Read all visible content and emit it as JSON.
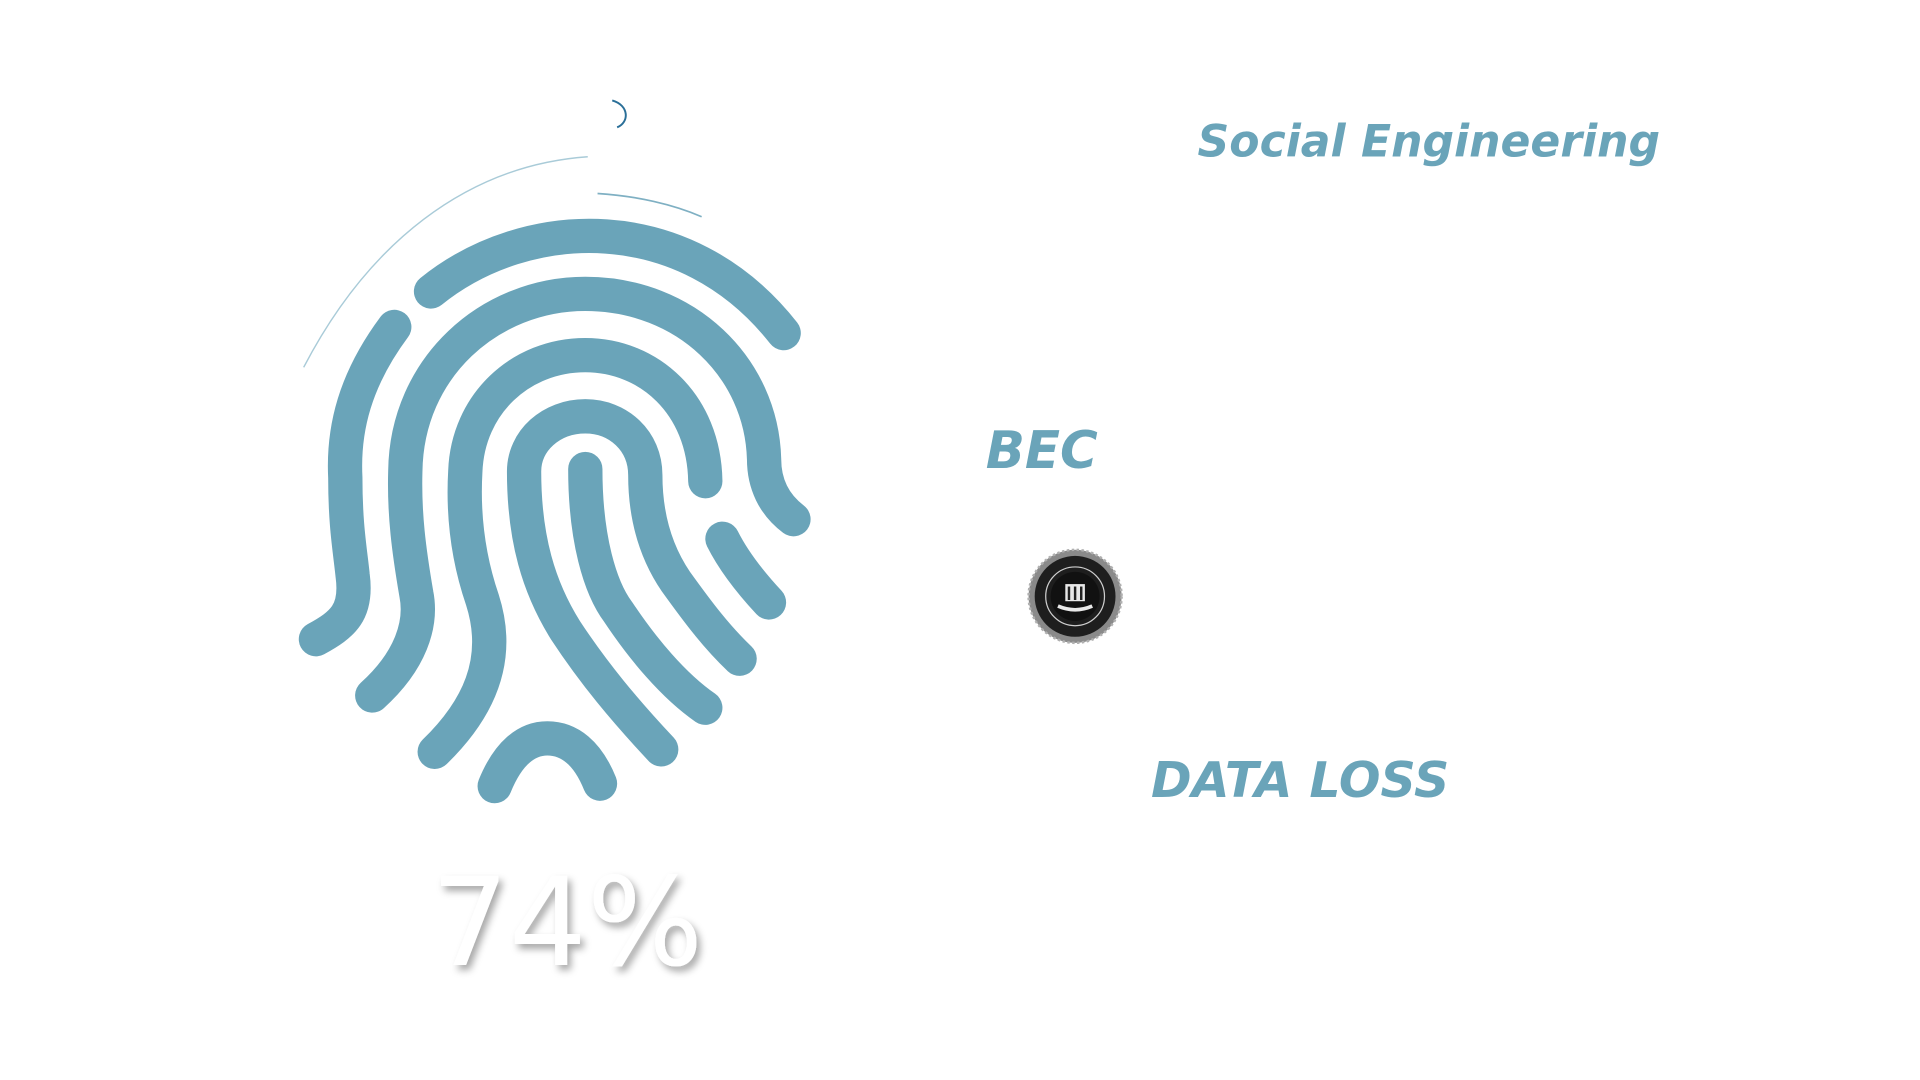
{
  "labels": {
    "social_engineering": "Social Engineering",
    "bec": "BEC",
    "data_loss": "DATA LOSS"
  },
  "stat": {
    "percent": "74%"
  },
  "seal": {
    "name": "fbi-seal-icon",
    "text": "DEPARTMENT OF JUSTICE · FEDERAL BUREAU OF INVESTIGATION"
  },
  "colors": {
    "accent": "#6aa4b9",
    "stat_text": "#ffffff",
    "seal_dark": "#1e1e1e",
    "seal_ring": "#8a8a8a"
  },
  "icons": [
    "fingerprint-icon",
    "fbi-seal-icon"
  ]
}
